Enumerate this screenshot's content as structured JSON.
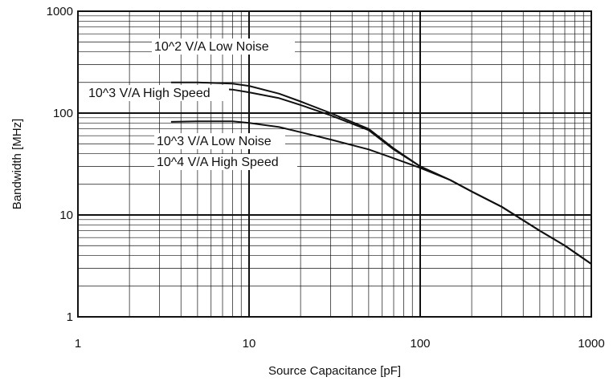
{
  "chart_data": {
    "type": "line",
    "title": "",
    "xlabel": "Source Capacitance [pF]",
    "ylabel": "Bandwidth [MHz]",
    "xscale": "log",
    "yscale": "log",
    "xlim": [
      1,
      1000
    ],
    "ylim": [
      1,
      1000
    ],
    "grid": true,
    "x_ticks": [
      "1",
      "10",
      "100",
      "1000"
    ],
    "y_ticks": [
      "1",
      "10",
      "100",
      "1000"
    ],
    "series": [
      {
        "name": "10^2 V/A Low Noise",
        "x": [
          3.5,
          5,
          8,
          10,
          15,
          20,
          30,
          50,
          70,
          100,
          150,
          200,
          300,
          500,
          700,
          1000
        ],
        "y": [
          200,
          200,
          195,
          185,
          155,
          130,
          100,
          70,
          45,
          30,
          22,
          17,
          12,
          7,
          5,
          3.3
        ]
      },
      {
        "name": "10^3 V/A High Speed",
        "x": [
          3.5,
          5,
          8,
          10,
          15,
          20,
          30,
          50,
          70,
          100,
          150,
          200,
          300,
          500,
          700,
          1000
        ],
        "y": [
          180,
          178,
          170,
          160,
          140,
          120,
          95,
          68,
          44,
          30,
          22,
          17,
          12,
          7,
          5,
          3.3
        ]
      },
      {
        "name": "10^3 V/A Low Noise / 10^4 V/A High Speed",
        "x": [
          3.5,
          5,
          8,
          10,
          15,
          20,
          30,
          50,
          70,
          100,
          150,
          200,
          300,
          500,
          700,
          1000
        ],
        "y": [
          82,
          83,
          83,
          80,
          73,
          65,
          55,
          44,
          36,
          29,
          22,
          17,
          12,
          7,
          5,
          3.3
        ]
      }
    ],
    "annotations": [
      {
        "text": "10^2 V/A Low Noise"
      },
      {
        "text": "10^3 V/A High Speed"
      },
      {
        "text": "10^3 V/A Low Noise"
      },
      {
        "text": "10^4 V/A High Speed"
      }
    ],
    "line_color": "#111111",
    "grid_color": "#111111"
  }
}
